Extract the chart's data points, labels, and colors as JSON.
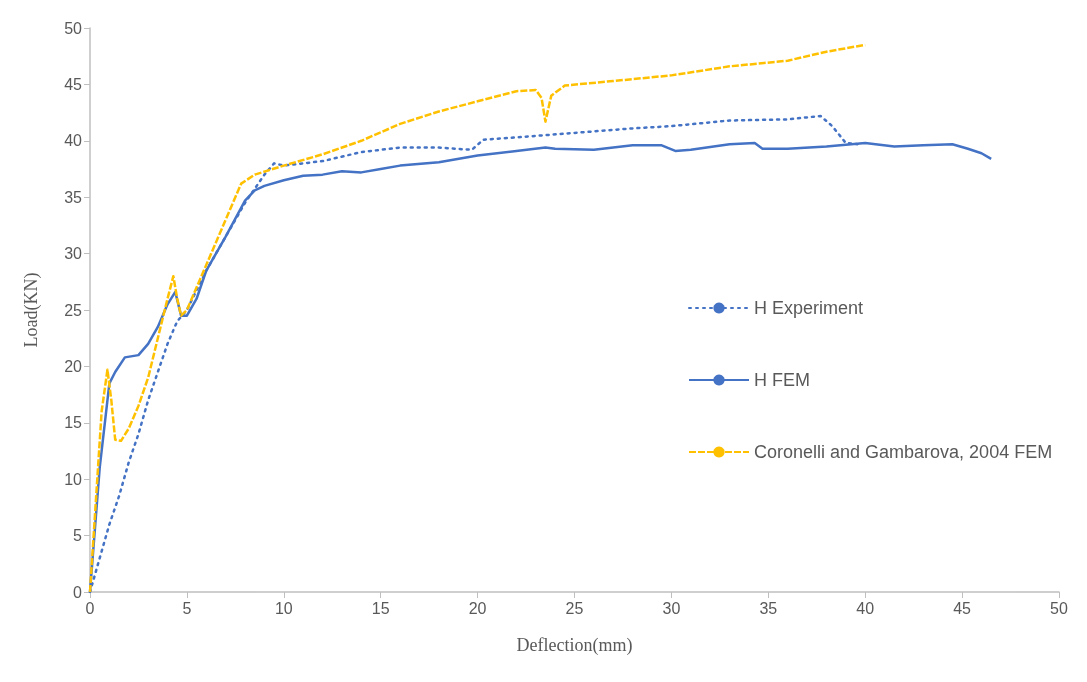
{
  "chart_data": {
    "type": "line",
    "xlabel": "Deflection(mm)",
    "ylabel": "Load(KN)",
    "xlim": [
      0,
      50
    ],
    "xticks": [
      0,
      5,
      10,
      15,
      20,
      25,
      30,
      35,
      40,
      45,
      50
    ],
    "ylim": [
      0,
      50
    ],
    "yticks": [
      0,
      5,
      10,
      15,
      20,
      25,
      30,
      35,
      40,
      45,
      50
    ],
    "grid": false,
    "legend": "right",
    "marker": "none",
    "series": [
      {
        "name": "H Experiment",
        "color": "#4472c4",
        "line_style": "dotted",
        "x": [
          0,
          0.5,
          1,
          1.5,
          2,
          2.5,
          3,
          3.5,
          4,
          4.5,
          5,
          6,
          7,
          8,
          9,
          9.5,
          10,
          12,
          14,
          16,
          18,
          19.7,
          20.3,
          22,
          25,
          28,
          30,
          33,
          36,
          37.7,
          38.3,
          39,
          39.6
        ],
        "values": [
          0,
          3,
          6,
          8.5,
          11.5,
          14,
          17,
          19.5,
          22,
          24,
          25,
          28.5,
          31.5,
          34.5,
          37,
          38,
          37.8,
          38.2,
          39,
          39.4,
          39.4,
          39.2,
          40.1,
          40.3,
          40.7,
          41.1,
          41.3,
          41.8,
          41.9,
          42.2,
          41.3,
          39.8,
          39.7
        ]
      },
      {
        "name": "H FEM",
        "color": "#4472c4",
        "line_style": "solid",
        "x": [
          0,
          0.5,
          1,
          1.3,
          1.8,
          2.5,
          3,
          3.5,
          4,
          4.4,
          4.7,
          5,
          5.5,
          6,
          7,
          8,
          8.5,
          9,
          10,
          11,
          12,
          13,
          14,
          15,
          16,
          18,
          20,
          22,
          23.5,
          24,
          26,
          28,
          29.5,
          30.2,
          31,
          33,
          34.3,
          34.7,
          36,
          38,
          40,
          41.5,
          43,
          44.5,
          45.3,
          46,
          46.5
        ],
        "values": [
          0,
          11,
          18.5,
          19.5,
          20.8,
          21,
          22,
          23.5,
          25.5,
          26.6,
          24.5,
          24.5,
          26,
          28.5,
          31.5,
          34.7,
          35.6,
          36,
          36.5,
          36.9,
          37,
          37.3,
          37.2,
          37.5,
          37.8,
          38.1,
          38.7,
          39.1,
          39.4,
          39.3,
          39.2,
          39.6,
          39.6,
          39.1,
          39.2,
          39.7,
          39.8,
          39.3,
          39.3,
          39.5,
          39.8,
          39.5,
          39.6,
          39.7,
          39.3,
          38.9,
          38.4
        ]
      },
      {
        "name": "Coronelli and Gambarova, 2004 FEM",
        "color": "#ffc000",
        "line_style": "dashed",
        "x": [
          0,
          0.3,
          0.6,
          0.9,
          1.1,
          1.3,
          1.6,
          2,
          2.5,
          3,
          3.5,
          4,
          4.3,
          4.5,
          4.7,
          5,
          6,
          7,
          7.8,
          8.5,
          10,
          12,
          14,
          16,
          18,
          20,
          22,
          23,
          23.3,
          23.5,
          23.8,
          24.5,
          27,
          30,
          33,
          36,
          38,
          40
        ],
        "values": [
          0,
          8,
          16,
          19.7,
          17,
          13.5,
          13.4,
          14.5,
          16.5,
          19,
          22.5,
          26,
          28,
          26,
          24.5,
          25,
          29,
          33,
          36.2,
          37,
          37.8,
          38.8,
          40,
          41.5,
          42.6,
          43.5,
          44.4,
          44.5,
          43.8,
          41.7,
          44,
          44.9,
          45.3,
          45.8,
          46.6,
          47.1,
          47.9,
          48.5
        ]
      }
    ]
  }
}
